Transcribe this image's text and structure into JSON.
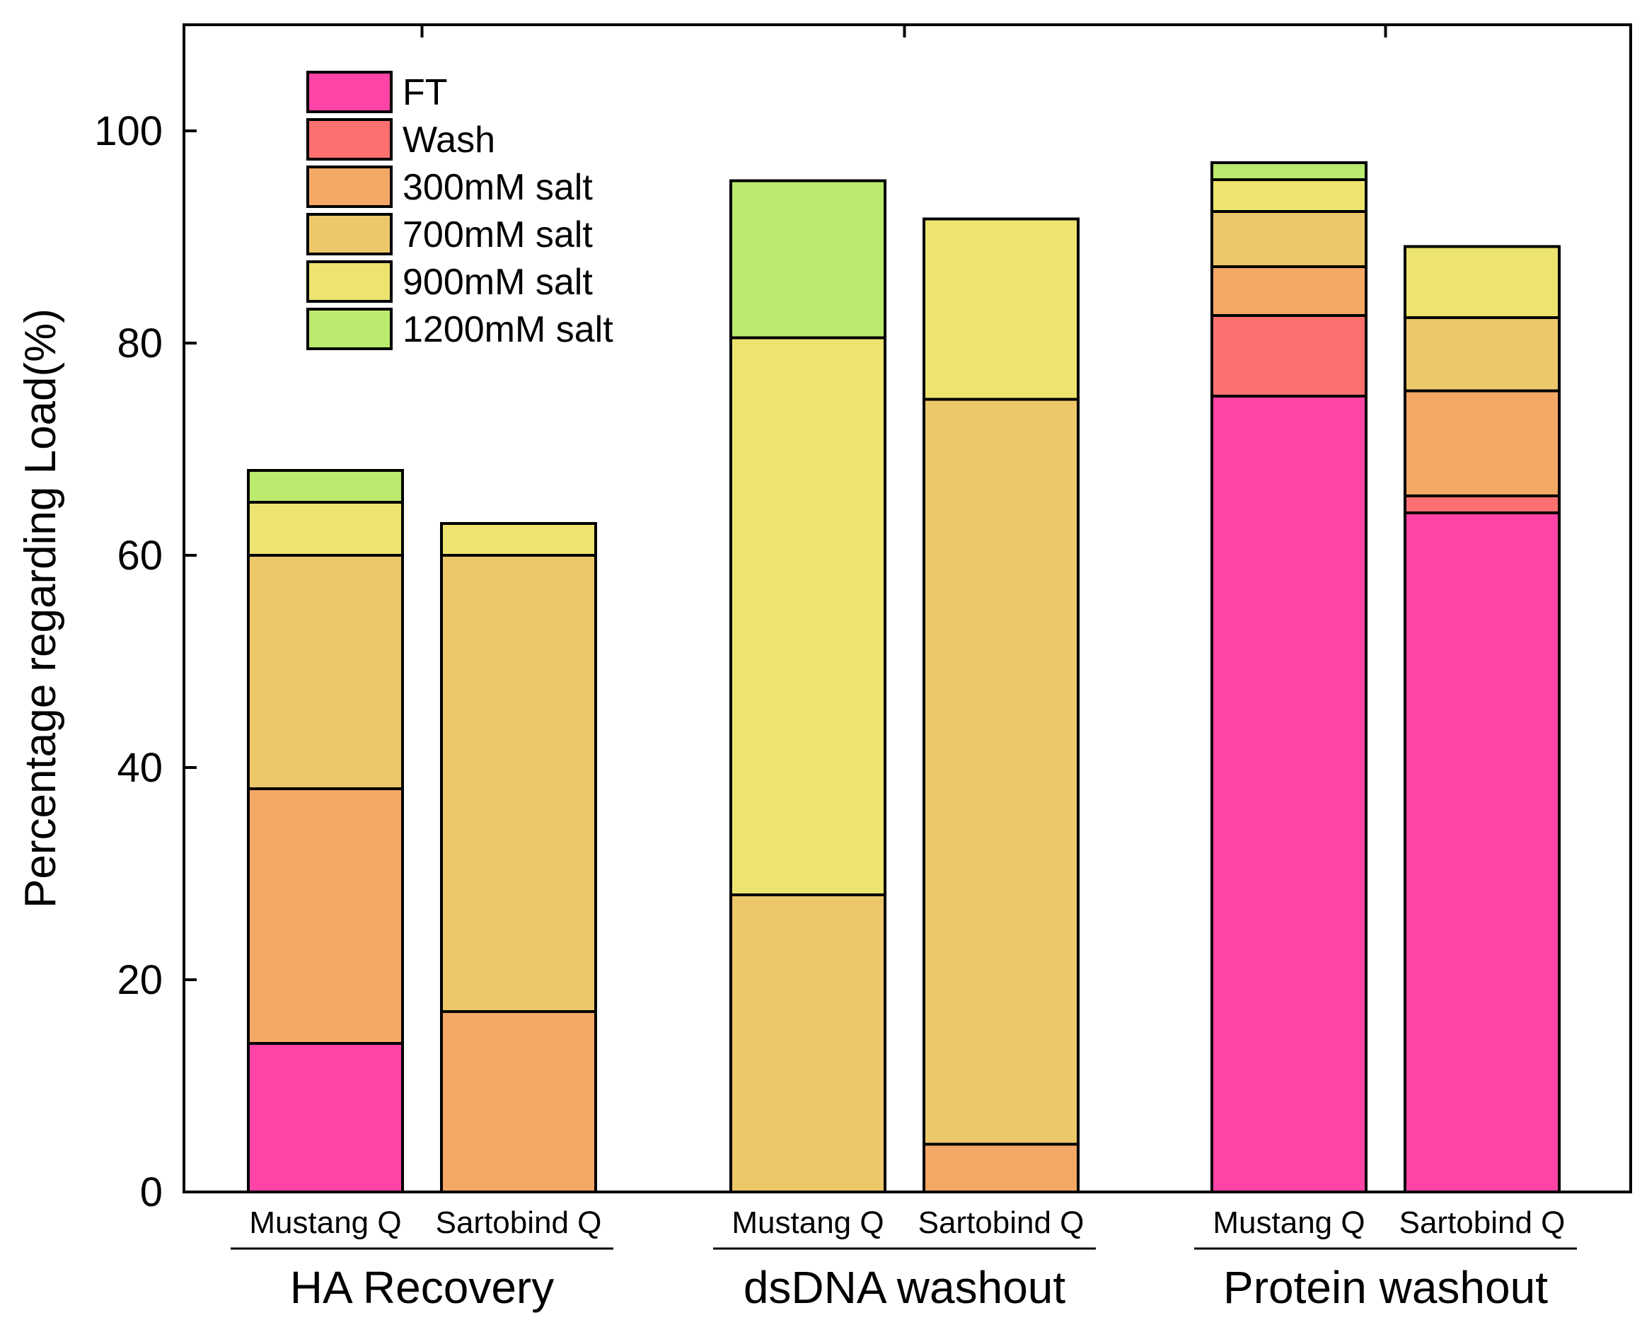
{
  "chart_data": {
    "type": "bar",
    "stacked": true,
    "title": "",
    "xlabel": "",
    "ylabel": "Percentage regarding Load(%)",
    "ylim": [
      0,
      110
    ],
    "yticks": [
      0,
      20,
      40,
      60,
      80,
      100
    ],
    "legend_position": "top-left",
    "groups": [
      {
        "name": "HA Recovery",
        "categories": [
          "Mustang Q",
          "Sartobind Q"
        ]
      },
      {
        "name": "dsDNA washout",
        "categories": [
          "Mustang Q",
          "Sartobind Q"
        ]
      },
      {
        "name": "Protein washout",
        "categories": [
          "Mustang Q",
          "Sartobind Q"
        ]
      }
    ],
    "categories": [
      "HA Recovery - Mustang Q",
      "HA Recovery - Sartobind Q",
      "dsDNA washout - Mustang Q",
      "dsDNA washout - Sartobind Q",
      "Protein washout - Mustang Q",
      "Protein washout - Sartobind Q"
    ],
    "series": [
      {
        "name": "FT",
        "color": "#ff44a8",
        "values": [
          14,
          0,
          0,
          0,
          75,
          64
        ]
      },
      {
        "name": "Wash",
        "color": "#fd7070",
        "values": [
          0,
          0,
          0,
          0,
          7.6,
          1.6
        ]
      },
      {
        "name": "300mM salt",
        "color": "#f4a866",
        "values": [
          24,
          17,
          0,
          4.5,
          4.6,
          9.9
        ]
      },
      {
        "name": "700mM salt",
        "color": "#ecc86a",
        "values": [
          22,
          43,
          28,
          70.2,
          5.2,
          6.9
        ]
      },
      {
        "name": "900mM salt",
        "color": "#ece46e",
        "values": [
          5,
          3,
          52.5,
          17,
          3,
          6.7
        ]
      },
      {
        "name": "1200mM salt",
        "color": "#bbea6e",
        "values": [
          3,
          0,
          14.8,
          0,
          1.6,
          0
        ]
      }
    ]
  }
}
